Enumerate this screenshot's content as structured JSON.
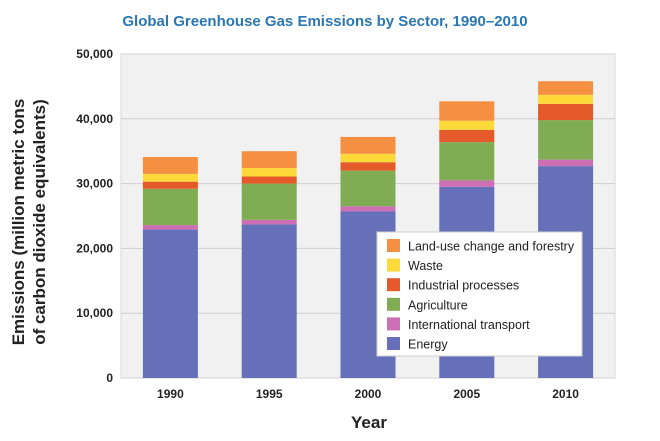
{
  "chart_data": {
    "type": "bar",
    "stacked": true,
    "title": "Global Greenhouse Gas Emissions by Sector, 1990–2010",
    "xlabel": "Year",
    "ylabel_line1": "Emissions (million metric tons",
    "ylabel_line2": "of carbon dioxide equivalents)",
    "ylim": [
      0,
      50000
    ],
    "yticks": [
      0,
      10000,
      20000,
      30000,
      40000,
      50000
    ],
    "ytick_labels": [
      "0",
      "10,000",
      "20,000",
      "30,000",
      "40,000",
      "50,000"
    ],
    "categories": [
      "1990",
      "1995",
      "2000",
      "2005",
      "2010"
    ],
    "grid": true,
    "legend_position": "bottom-right",
    "series": [
      {
        "name": "Energy",
        "color": "#6670b8",
        "values": [
          22900,
          23700,
          25700,
          29500,
          32700
        ]
      },
      {
        "name": "International transport",
        "color": "#cc6fb5",
        "values": [
          700,
          700,
          800,
          1000,
          1000
        ]
      },
      {
        "name": "Agriculture",
        "color": "#80ad53",
        "values": [
          5600,
          5600,
          5500,
          5900,
          6100
        ]
      },
      {
        "name": "Industrial processes",
        "color": "#e55a2b",
        "values": [
          1100,
          1100,
          1300,
          1900,
          2500
        ]
      },
      {
        "name": "Waste",
        "color": "#fdd93a",
        "values": [
          1200,
          1300,
          1300,
          1400,
          1400
        ]
      },
      {
        "name": "Land-use change and forestry",
        "color": "#f59043",
        "values": [
          2600,
          2600,
          2600,
          3000,
          2100
        ]
      }
    ]
  }
}
